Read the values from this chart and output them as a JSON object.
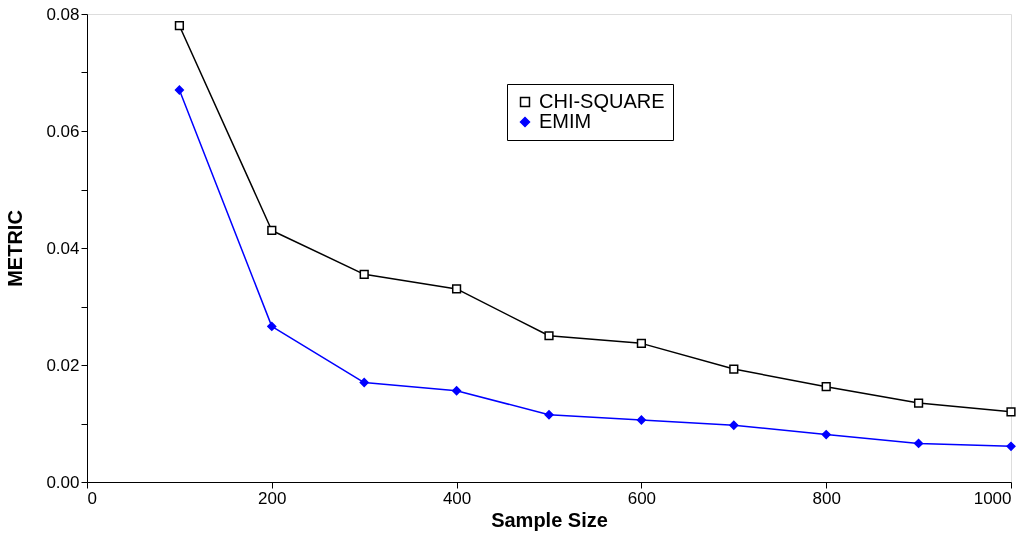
{
  "chart_data": {
    "type": "line",
    "xlabel": "Sample  Size",
    "ylabel": "METRIC",
    "x": [
      100,
      200,
      300,
      400,
      500,
      600,
      700,
      800,
      900,
      1000
    ],
    "series": [
      {
        "name": "CHI-SQUARE",
        "color": "#000000",
        "marker": "square",
        "values": [
          0.078,
          0.043,
          0.0355,
          0.033,
          0.025,
          0.0237,
          0.0193,
          0.0163,
          0.0135,
          0.012
        ]
      },
      {
        "name": "EMIM",
        "color": "#0000ff",
        "marker": "diamond",
        "values": [
          0.067,
          0.0266,
          0.017,
          0.0156,
          0.0115,
          0.0106,
          0.0097,
          0.0081,
          0.0066,
          0.0061
        ]
      }
    ],
    "xlim": [
      0,
      1000
    ],
    "xticks": [
      0,
      200,
      400,
      600,
      800,
      1000
    ],
    "ylim": [
      0,
      0.08
    ],
    "yticks": [
      {
        "value": 0,
        "label": "0.00"
      },
      {
        "value": 0.01,
        "label": null
      },
      {
        "value": 0.02,
        "label": "0.02"
      },
      {
        "value": 0.03,
        "label": null
      },
      {
        "value": 0.04,
        "label": "0.04"
      },
      {
        "value": 0.05,
        "label": null
      },
      {
        "value": 0.06,
        "label": "0.06"
      },
      {
        "value": 0.07,
        "label": null
      },
      {
        "value": 0.08,
        "label": "0.08"
      }
    ],
    "grid": false,
    "legend": "top right"
  }
}
